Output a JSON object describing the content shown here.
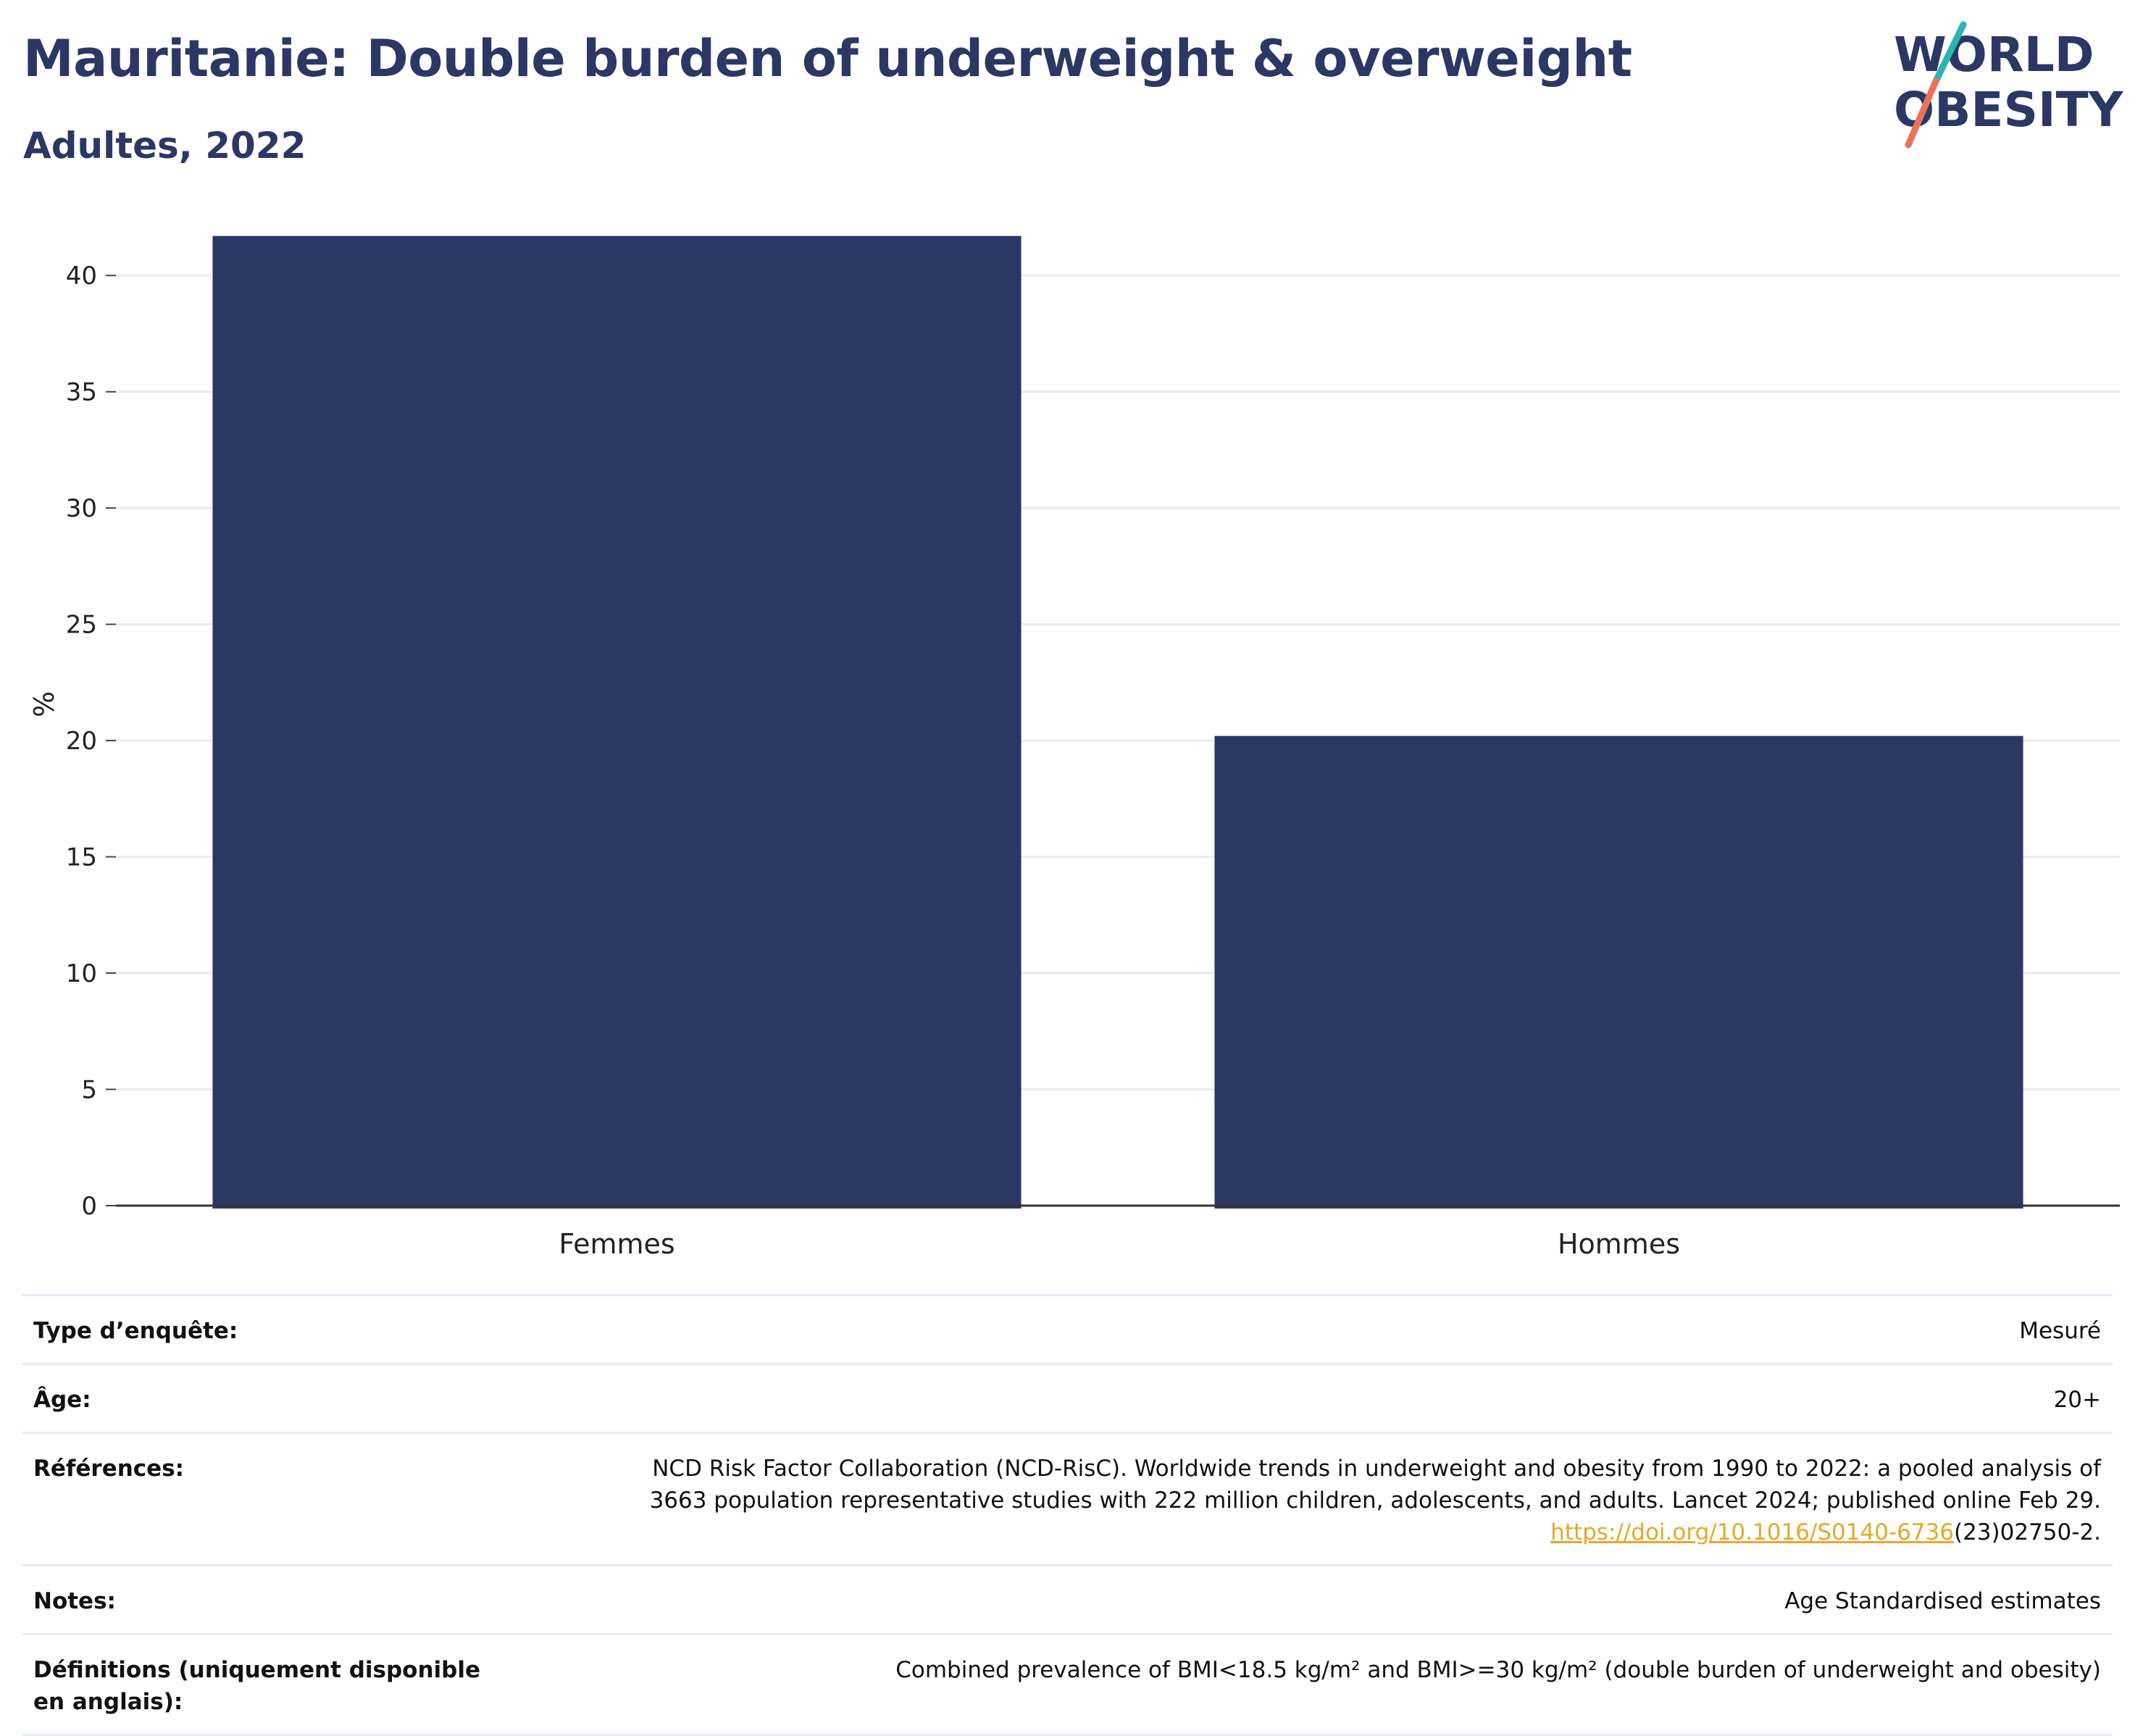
{
  "header": {
    "title": "Mauritanie: Double burden of underweight & overweight",
    "subtitle": "Adultes, 2022"
  },
  "logo": {
    "line1": "WORLD",
    "line2": "OBESITY",
    "colors": {
      "text": "#2b3764",
      "slash_top": "#2bb5b0",
      "slash_bottom": "#e8735a"
    }
  },
  "chart_data": {
    "type": "bar",
    "categories": [
      "Femmes",
      "Hommes"
    ],
    "values": [
      41.7,
      20.2
    ],
    "title": "Mauritanie: Double burden of underweight & overweight",
    "subtitle": "Adultes, 2022",
    "xlabel": "",
    "ylabel": "%",
    "ylim": [
      0,
      42.5
    ],
    "yticks": [
      0,
      5,
      10,
      15,
      20,
      25,
      30,
      35,
      40
    ],
    "grid": true,
    "legend": "none",
    "bar_color": "#2b3764"
  },
  "meta": {
    "rows": [
      {
        "label": "Type d’enquête:",
        "value": "Mesuré"
      },
      {
        "label": "Âge:",
        "value": "20+"
      },
      {
        "label": "Références:",
        "value_line1": "NCD Risk Factor Collaboration (NCD-RisC). Worldwide trends in underweight and obesity from 1990 to 2022: a pooled analysis of",
        "value_line2": "3663 population representative studies with 222 million children, adolescents, and adults. Lancet 2024; published online Feb 29.",
        "doi_link": "https://doi.org/10.1016/S0140-6736",
        "doi_suffix": "(23)02750-2."
      },
      {
        "label": "Notes:",
        "value": "Age Standardised estimates"
      },
      {
        "label": "Définitions (uniquement disponible en anglais):",
        "value": "Combined prevalence of BMI<18.5 kg/m² and BMI>=30 kg/m² (double burden of underweight and obesity)"
      }
    ]
  }
}
